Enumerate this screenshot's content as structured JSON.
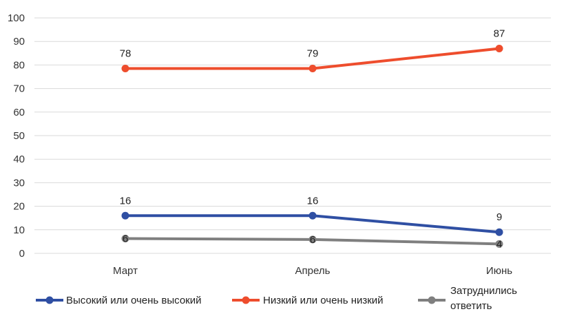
{
  "chart_data": {
    "type": "line",
    "title": "",
    "xlabel": "",
    "ylabel": "",
    "categories": [
      "Март",
      "Апрель",
      "Июнь"
    ],
    "ylim": [
      0,
      100
    ],
    "yticks": [
      "0",
      "10",
      "20",
      "30",
      "40",
      "50",
      "60",
      "70",
      "80",
      "90",
      "100"
    ],
    "grid": true,
    "legend_position": "bottom",
    "series": [
      {
        "name": "Высокий или очень высокий",
        "color": "#2f4fa3",
        "values": [
          16,
          16,
          9
        ],
        "labels": [
          "16",
          "16",
          "9"
        ]
      },
      {
        "name": "Низкий или очень низкий",
        "color": "#ee4d2d",
        "values": [
          78.5,
          78.5,
          87
        ],
        "labels": [
          "78",
          "79",
          "87"
        ]
      },
      {
        "name_lines": [
          "Затруднились",
          "ответить"
        ],
        "color": "#7f7f7f",
        "values": [
          6.3,
          5.9,
          4
        ],
        "labels": [
          "6",
          "6",
          "4"
        ]
      }
    ]
  }
}
